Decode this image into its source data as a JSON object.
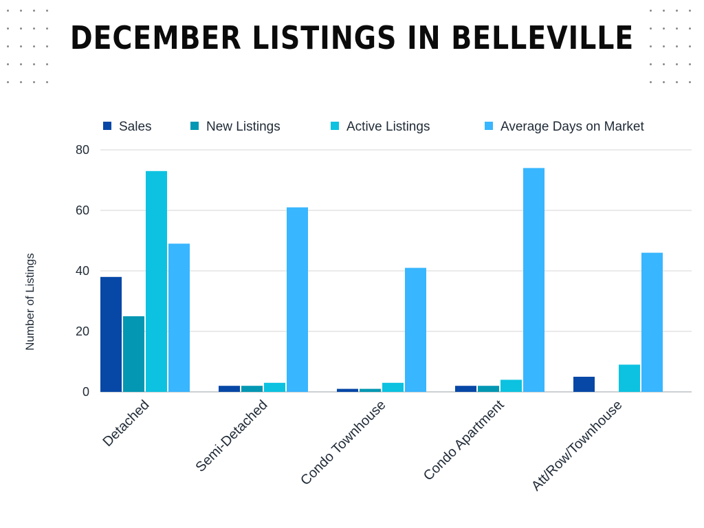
{
  "title": "DECEMBER LISTINGS IN BELLEVILLE",
  "chart_data": {
    "type": "bar",
    "categories": [
      "Detached",
      "Semi-Detached",
      "Condo Townhouse",
      "Condo Apartment",
      "Att/Row/Townhouse"
    ],
    "series": [
      {
        "name": "Sales",
        "color": "#0747a6",
        "values": [
          38,
          2,
          1,
          2,
          5
        ]
      },
      {
        "name": "New Listings",
        "color": "#0397b3",
        "values": [
          25,
          2,
          1,
          2,
          0
        ]
      },
      {
        "name": "Active Listings",
        "color": "#0cc2e0",
        "values": [
          73,
          3,
          3,
          4,
          9
        ]
      },
      {
        "name": "Average Days on Market",
        "color": "#38b6ff",
        "values": [
          49,
          61,
          41,
          74,
          46
        ]
      }
    ],
    "ylabel": "Number of Listings",
    "xlabel": "",
    "ylim": [
      0,
      80
    ],
    "yticks": [
      0,
      20,
      40,
      60,
      80
    ],
    "grid": true,
    "legend": "top"
  }
}
